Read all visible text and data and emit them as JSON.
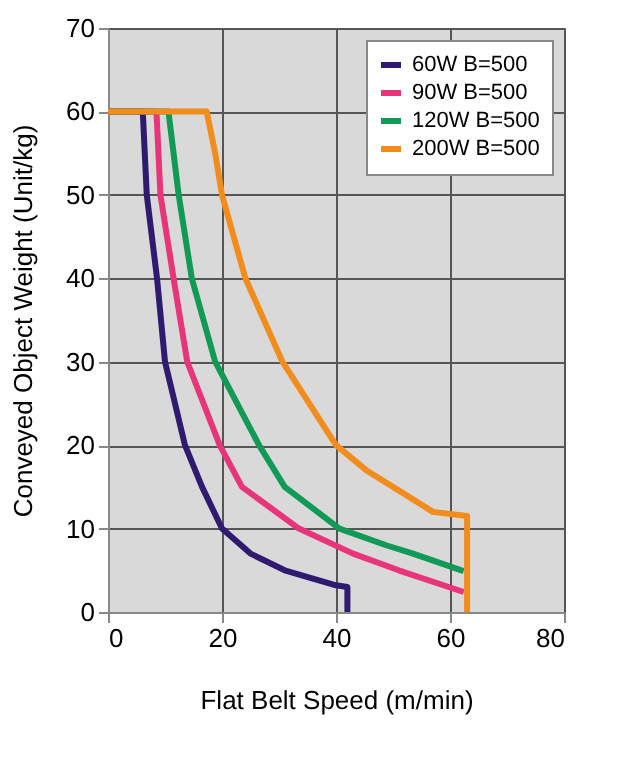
{
  "chart_data": {
    "type": "line",
    "xlabel": "Flat Belt Speed (m/min)",
    "ylabel": "Conveyed Object Weight (Unit/kg)",
    "xlim": [
      0,
      80
    ],
    "ylim": [
      0,
      70
    ],
    "xticks": [
      0,
      20,
      40,
      60,
      80
    ],
    "yticks": [
      0,
      10,
      20,
      30,
      40,
      50,
      60,
      70
    ],
    "grid": true,
    "legend": "top right",
    "marker": "none",
    "line_style": "solid",
    "series": [
      {
        "name": "60W B=500",
        "color": "#2e1a6e",
        "x": [
          0,
          6.1,
          6.8,
          8.6,
          10,
          13.5,
          16.5,
          20,
          25,
          31,
          40,
          42,
          42
        ],
        "values": [
          60,
          60,
          50,
          40,
          30,
          20,
          15,
          10,
          7,
          5,
          3.2,
          3,
          0
        ]
      },
      {
        "name": "90W B=500",
        "color": "#e8357a",
        "x": [
          0,
          8.5,
          9.2,
          11.5,
          13.9,
          19.6,
          23.5,
          33.5,
          43,
          51,
          62.4
        ],
        "values": [
          60,
          60,
          50,
          40,
          30,
          20,
          15,
          10,
          7,
          5,
          2.4
        ]
      },
      {
        "name": "120W B=500",
        "color": "#119a55",
        "x": [
          0,
          10.6,
          12.4,
          14.7,
          18.8,
          26.5,
          31,
          40.6,
          48.8,
          53.5,
          62.4
        ],
        "values": [
          60,
          60,
          50,
          40,
          30,
          20,
          15,
          10,
          8,
          7,
          4.9
        ]
      },
      {
        "name": "200W B=500",
        "color": "#f28c1c",
        "x": [
          0,
          17.3,
          18.8,
          20,
          24.1,
          30.6,
          40,
          45.3,
          50,
          57,
          63,
          63
        ],
        "values": [
          60,
          60,
          55,
          50,
          40,
          30,
          20,
          17,
          15,
          12,
          11.5,
          0
        ]
      }
    ]
  }
}
